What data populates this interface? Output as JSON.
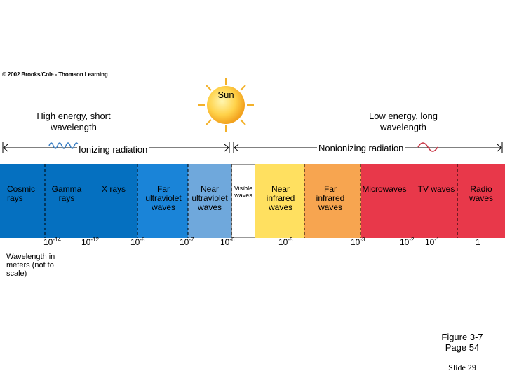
{
  "copyright": "© 2002 Brooks/Cole - Thomson Learning",
  "sun_label": "Sun",
  "left_title": "High energy, short wavelength",
  "right_title": "Low energy, long wavelength",
  "ionizing_label": "Ionizing radiation",
  "nonionizing_label": "Nonionizing radiation",
  "bands": [
    {
      "label": "Cosmic rays",
      "color": "#0570c0"
    },
    {
      "label": "Gamma rays",
      "color": "#0570c0"
    },
    {
      "label": "X rays",
      "color": "#0570c0"
    },
    {
      "label": "Far ultraviolet waves",
      "color": "#1a84d8"
    },
    {
      "label": "Near ultraviolet waves",
      "color": "#6fa8dc"
    },
    {
      "label": "Visible waves",
      "color": "#ffffff"
    },
    {
      "label": "Near infrared waves",
      "color": "#ffe060"
    },
    {
      "label": "Far infrared waves",
      "color": "#f7a550"
    },
    {
      "label": "Microwaves",
      "color": "#e8384a"
    },
    {
      "label": "TV waves",
      "color": "#e8384a"
    },
    {
      "label": "Radio waves",
      "color": "#e8384a"
    }
  ],
  "wavelengths": [
    {
      "base": "10",
      "exp": "-14"
    },
    {
      "base": "10",
      "exp": "-12"
    },
    {
      "base": "10",
      "exp": "-8"
    },
    {
      "base": "10",
      "exp": "-7"
    },
    {
      "base": "10",
      "exp": "-6"
    },
    {
      "base": "10",
      "exp": "-5"
    },
    {
      "base": "10",
      "exp": "-3"
    },
    {
      "base": "10",
      "exp": "-2"
    },
    {
      "base": "10",
      "exp": "-1"
    },
    {
      "base": "1",
      "exp": ""
    }
  ],
  "wavelength_note": "Wavelength in meters (not to scale)",
  "figure_caption": "Figure 3-7",
  "page_caption": "Page 54",
  "slide_caption": "Slide 29"
}
